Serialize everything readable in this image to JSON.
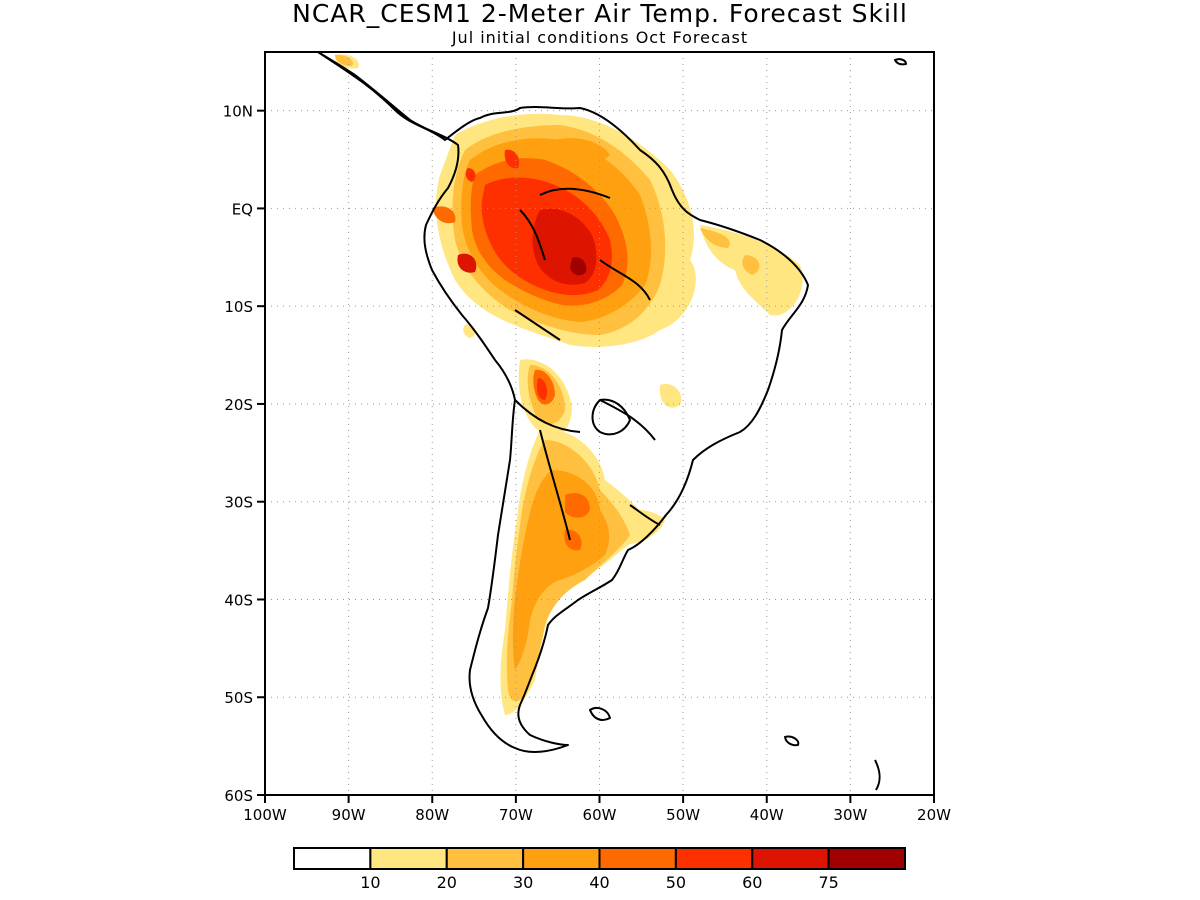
{
  "title": "NCAR_CESM1 2-Meter Air Temp. Forecast Skill",
  "subtitle": "Jul initial conditions  Oct Forecast",
  "map": {
    "lon_range": [
      -100,
      -20
    ],
    "lat_range": [
      -60,
      16
    ],
    "lat_ticks": [
      {
        "value": 10,
        "label": "10N"
      },
      {
        "value": 0,
        "label": "EQ"
      },
      {
        "value": -10,
        "label": "10S"
      },
      {
        "value": -20,
        "label": "20S"
      },
      {
        "value": -30,
        "label": "30S"
      },
      {
        "value": -40,
        "label": "40S"
      },
      {
        "value": -50,
        "label": "50S"
      },
      {
        "value": -60,
        "label": "60S"
      }
    ],
    "lon_ticks": [
      {
        "value": -100,
        "label": "100W"
      },
      {
        "value": -90,
        "label": "90W"
      },
      {
        "value": -80,
        "label": "80W"
      },
      {
        "value": -70,
        "label": "70W"
      },
      {
        "value": -60,
        "label": "60W"
      },
      {
        "value": -50,
        "label": "50W"
      },
      {
        "value": -40,
        "label": "40W"
      },
      {
        "value": -30,
        "label": "30W"
      },
      {
        "value": -20,
        "label": "20W"
      }
    ],
    "grid": "dotted"
  },
  "colorbar": {
    "colors": [
      "#ffffff",
      "#ffe680",
      "#ffc040",
      "#ffa010",
      "#ff6a00",
      "#ff3000",
      "#dc1400",
      "#a00000"
    ],
    "labels": [
      "10",
      "20",
      "30",
      "40",
      "50",
      "60",
      "75"
    ]
  }
}
